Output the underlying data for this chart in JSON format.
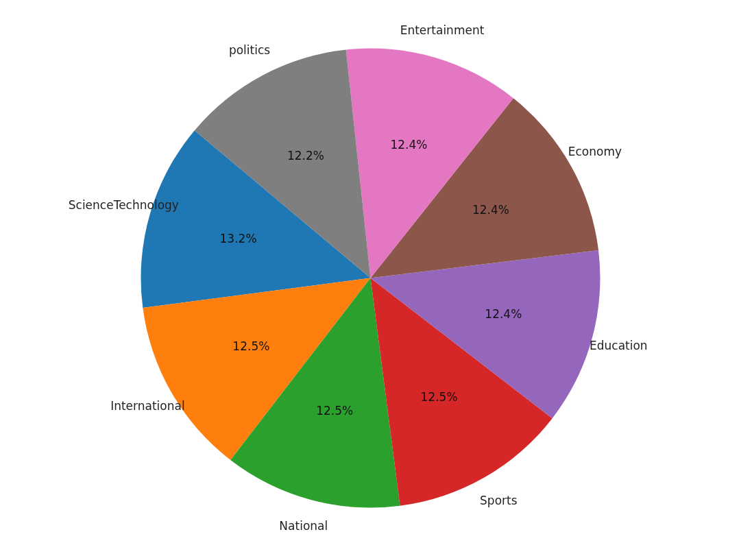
{
  "chart_data": {
    "type": "pie",
    "categories": [
      "ScienceTechnology",
      "International",
      "National",
      "Sports",
      "Education",
      "Economy",
      "Entertainment",
      "politics"
    ],
    "values": [
      13.2,
      12.5,
      12.5,
      12.5,
      12.4,
      12.4,
      12.4,
      12.2
    ],
    "colors": [
      "#1f77b4",
      "#ff7f0e",
      "#2ca02c",
      "#d62728",
      "#9467bd",
      "#8c564b",
      "#e377c2",
      "#7f7f7f"
    ],
    "value_labels": [
      "13.2%",
      "12.5%",
      "12.5%",
      "12.5%",
      "12.4%",
      "12.4%",
      "12.4%",
      "12.2%"
    ]
  }
}
